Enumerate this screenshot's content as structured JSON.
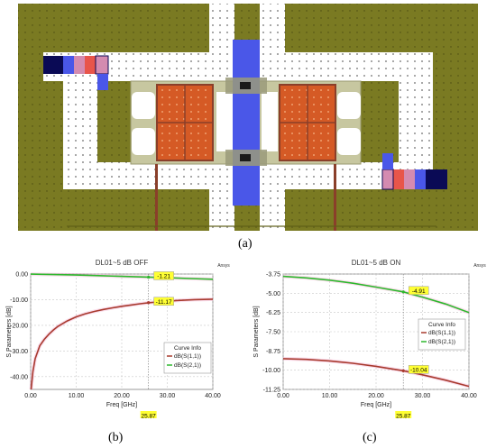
{
  "figure": {
    "label_a": "(a)",
    "label_b": "(b)",
    "label_c": "(c)"
  },
  "colors": {
    "olive": "#7a7a22",
    "olive_dark": "#5f5f18",
    "track": "#ffffff",
    "dot": "#6b6b6b",
    "blue": "#4a57e8",
    "navy": "#0a0a55",
    "pink": "#d48bb0",
    "red": "#e8554a",
    "orange": "#d55a25",
    "khaki": "#b8b888",
    "brown": "#8a3f2a",
    "s11": "#a83a2e",
    "s21": "#2db82d",
    "marker": "#ffff33"
  },
  "chart_data": [
    {
      "type": "line",
      "title": "DL01~5 dB OFF",
      "brand": "Ansys",
      "xlabel": "Freq [GHz]",
      "ylabel": "S Parameters [dB]",
      "xlim": [
        0,
        40
      ],
      "ylim": [
        -45,
        0
      ],
      "x_ticks": [
        "0.00",
        "10.00",
        "20.00",
        "30.00",
        "40.00"
      ],
      "y_ticks": [
        "0.00",
        "-10.00",
        "-20.00",
        "-30.00",
        "-40.00"
      ],
      "y_tick_values": [
        0,
        -10,
        -20,
        -30,
        -40
      ],
      "grid": true,
      "legend": {
        "title": "Curve Info",
        "position": "bottom-right"
      },
      "marker_x": "25.87",
      "marker_x_value": 25.87,
      "series": [
        {
          "name": "dB(S(1,1))",
          "x": [
            0.1,
            0.5,
            1,
            2,
            3,
            4,
            5,
            6,
            8,
            10,
            12,
            14,
            16,
            18,
            20,
            22,
            24,
            26,
            28,
            30,
            32,
            34,
            36,
            38,
            40
          ],
          "values": [
            -45,
            -38,
            -33,
            -28,
            -25.5,
            -23.5,
            -21.8,
            -20.4,
            -18.3,
            -16.7,
            -15.5,
            -14.6,
            -13.8,
            -13.2,
            -12.6,
            -12.1,
            -11.6,
            -11.17,
            -10.9,
            -10.6,
            -10.35,
            -10.15,
            -10.0,
            -9.9,
            -9.8
          ],
          "marker_label": "-11.17",
          "marker_value": -11.17
        },
        {
          "name": "dB(S(2,1))",
          "x": [
            0,
            5,
            10,
            15,
            20,
            25.87,
            30,
            35,
            40
          ],
          "values": [
            -0.05,
            -0.2,
            -0.4,
            -0.65,
            -0.9,
            -1.21,
            -1.45,
            -1.75,
            -2.05
          ],
          "marker_label": "-1.21",
          "marker_value": -1.21
        }
      ]
    },
    {
      "type": "line",
      "title": "DL01~5 dB ON",
      "brand": "Ansys",
      "xlabel": "Freq [GHz]",
      "ylabel": "S Parameters [dB]",
      "xlim": [
        0,
        40
      ],
      "ylim": [
        -11.25,
        -3.75
      ],
      "x_ticks": [
        "0.00",
        "10.00",
        "20.00",
        "30.00",
        "40.00"
      ],
      "y_ticks": [
        "-3.75",
        "-5.00",
        "-6.25",
        "-7.50",
        "-8.75",
        "-10.00",
        "-11.25"
      ],
      "y_tick_values": [
        -3.75,
        -5.0,
        -6.25,
        -7.5,
        -8.75,
        -10.0,
        -11.25
      ],
      "grid": true,
      "legend": {
        "title": "Curve Info",
        "position": "center-right"
      },
      "marker_x": "25.87",
      "marker_x_value": 25.87,
      "series": [
        {
          "name": "dB(S(1,1))",
          "x": [
            0,
            5,
            10,
            15,
            20,
            25.87,
            30,
            35,
            40
          ],
          "values": [
            -9.25,
            -9.3,
            -9.4,
            -9.55,
            -9.75,
            -10.04,
            -10.3,
            -10.65,
            -11.05
          ],
          "marker_label": "-10.04",
          "marker_value": -10.04
        },
        {
          "name": "dB(S(2,1))",
          "x": [
            0,
            5,
            10,
            15,
            20,
            25.87,
            30,
            35,
            40
          ],
          "values": [
            -3.9,
            -4.0,
            -4.15,
            -4.35,
            -4.6,
            -4.91,
            -5.25,
            -5.7,
            -6.25
          ],
          "marker_label": "-4.91",
          "marker_value": -4.91
        }
      ]
    }
  ]
}
